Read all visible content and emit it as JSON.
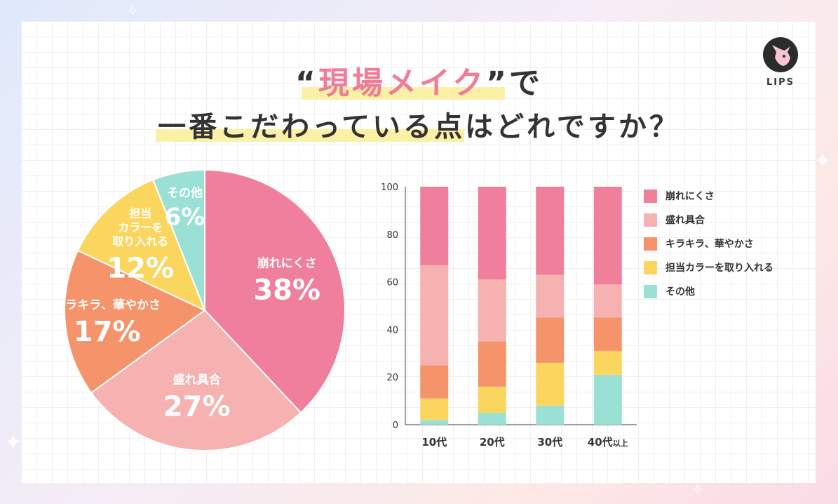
{
  "title": {
    "line1_quote_open": "“",
    "line1_highlight": "現場メイク",
    "line1_quote_close": "”で",
    "line2": "一番こだわっている点はどれですか？"
  },
  "logo": {
    "text": "LIPS"
  },
  "colors": {
    "kuzure": "#ef7f9b",
    "more": "#f5b2b0",
    "kirakira": "#f5946a",
    "tanto": "#fbd65f",
    "other": "#9be0d4",
    "title_accent": "#f07c98"
  },
  "chart_data": [
    {
      "type": "pie",
      "slices": [
        {
          "label": "崩れにくさ",
          "value": 38,
          "pct_text": "38%",
          "color_key": "kuzure"
        },
        {
          "label": "盛れ具合",
          "value": 27,
          "pct_text": "27%",
          "color_key": "more"
        },
        {
          "label": "キラキラ、華やかさ",
          "value": 17,
          "pct_text": "17%",
          "color_key": "kirakira"
        },
        {
          "label": "担当カラーを取り入れる",
          "label_lines": [
            "担当",
            "カラーを",
            "取り入れる"
          ],
          "value": 12,
          "pct_text": "12%",
          "color_key": "tanto"
        },
        {
          "label": "その他",
          "value": 6,
          "pct_text": "6%",
          "color_key": "other"
        }
      ]
    },
    {
      "type": "bar",
      "stacked": true,
      "categories": [
        "10代",
        "20代",
        "30代",
        "40代以上"
      ],
      "category_parts": [
        {
          "main": "10代",
          "suffix": ""
        },
        {
          "main": "20代",
          "suffix": ""
        },
        {
          "main": "30代",
          "suffix": ""
        },
        {
          "main": "40代",
          "suffix": "以上"
        }
      ],
      "ylim": [
        0,
        100
      ],
      "yticks": [
        0,
        20,
        40,
        60,
        80,
        100
      ],
      "series": [
        {
          "name": "その他",
          "color_key": "other",
          "values": [
            2,
            5,
            8,
            21
          ]
        },
        {
          "name": "担当カラーを取り入れる",
          "color_key": "tanto",
          "values": [
            9,
            11,
            18,
            10
          ]
        },
        {
          "name": "キラキラ、華やかさ",
          "color_key": "kirakira",
          "values": [
            14,
            19,
            19,
            14
          ]
        },
        {
          "name": "盛れ具合",
          "color_key": "more",
          "values": [
            42,
            26,
            18,
            14
          ]
        },
        {
          "name": "崩れにくさ",
          "color_key": "kuzure",
          "values": [
            33,
            39,
            37,
            41
          ]
        }
      ],
      "legend": [
        "崩れにくさ",
        "盛れ具合",
        "キラキラ、華やかさ",
        "担当カラーを取り入れる",
        "その他"
      ]
    }
  ]
}
